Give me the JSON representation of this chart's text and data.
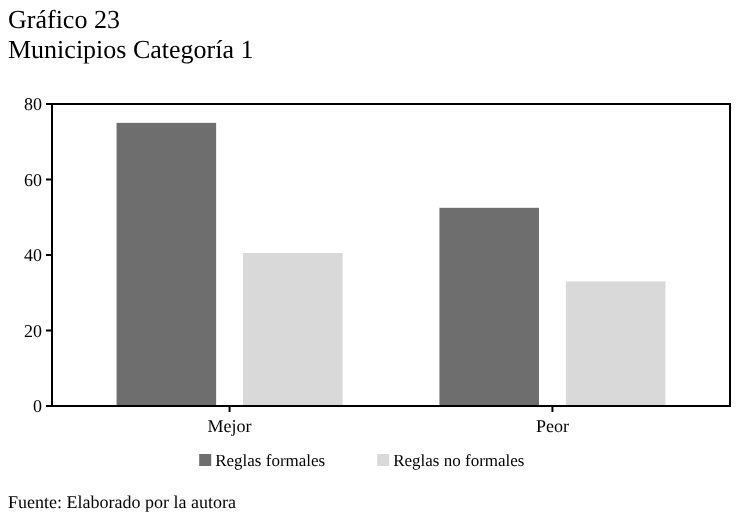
{
  "chart_data": {
    "type": "bar",
    "title": "Gráfico 23",
    "subtitle": "Municipios Categoría 1",
    "categories": [
      "Mejor",
      "Peor"
    ],
    "series": [
      {
        "name": "Reglas formales",
        "color": "#6e6e6e",
        "values": [
          75,
          52.5
        ]
      },
      {
        "name": "Reglas no formales",
        "color": "#d9d9d9",
        "values": [
          40.5,
          33
        ]
      }
    ],
    "ylim": [
      0,
      80
    ],
    "yticks": [
      0,
      20,
      40,
      60,
      80
    ],
    "grid": false,
    "legend": "bottom",
    "annotations": [
      "Fuente: Elaborado por la autora"
    ]
  }
}
